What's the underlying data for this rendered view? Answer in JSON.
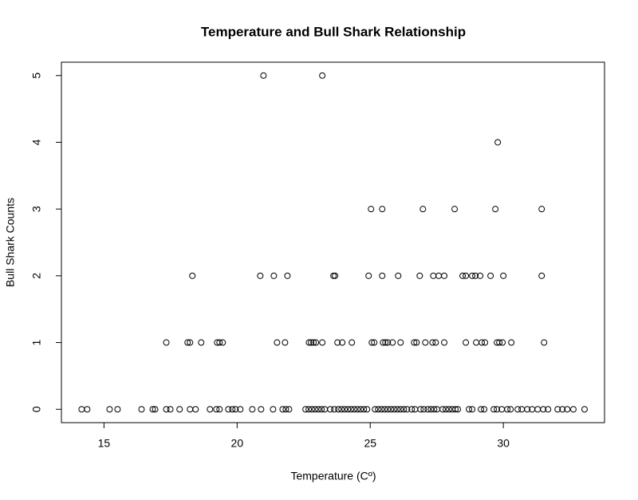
{
  "chart_data": {
    "type": "scatter",
    "title": "Temperature and Bull Shark Relationship",
    "x_label": "Temperature (Cº)",
    "y_label": "Bull Shark Counts",
    "color": "#000000",
    "xlim": [
      13.4,
      33.8
    ],
    "xticks": [
      15,
      20,
      25,
      30
    ],
    "ylim": [
      -0.2,
      5.2
    ],
    "yticks": [
      0,
      1,
      2,
      3,
      4,
      5
    ],
    "x": [
      20.99,
      23.2,
      29.79,
      25.03,
      25.45,
      26.98,
      28.17,
      29.7,
      31.44,
      18.32,
      20.87,
      21.38,
      21.89,
      23.62,
      23.68,
      24.94,
      25.45,
      26.05,
      26.86,
      27.37,
      27.57,
      27.78,
      28.47,
      28.59,
      28.83,
      28.95,
      29.13,
      29.52,
      30.0,
      31.44,
      17.34,
      18.14,
      18.23,
      18.65,
      19.25,
      19.34,
      19.46,
      21.5,
      21.8,
      22.7,
      22.78,
      22.87,
      22.96,
      23.2,
      23.77,
      23.95,
      24.31,
      25.06,
      25.15,
      25.48,
      25.57,
      25.66,
      25.84,
      26.14,
      26.65,
      26.74,
      27.07,
      27.34,
      27.46,
      27.78,
      28.59,
      28.98,
      29.19,
      29.31,
      29.76,
      29.85,
      29.97,
      30.3,
      31.53,
      14.16,
      14.37,
      15.21,
      15.51,
      16.41,
      16.83,
      16.92,
      17.34,
      17.49,
      17.84,
      18.23,
      18.44,
      18.98,
      19.22,
      19.34,
      19.67,
      19.82,
      19.94,
      20.12,
      20.57,
      20.9,
      21.35,
      21.71,
      21.83,
      21.95,
      22.57,
      22.69,
      22.81,
      22.93,
      23.05,
      23.17,
      23.29,
      23.5,
      23.65,
      23.8,
      23.92,
      24.04,
      24.16,
      24.28,
      24.4,
      24.52,
      24.64,
      24.76,
      24.88,
      25.18,
      25.3,
      25.42,
      25.54,
      25.66,
      25.78,
      25.9,
      26.02,
      26.14,
      26.26,
      26.38,
      26.56,
      26.68,
      26.89,
      27.01,
      27.16,
      27.28,
      27.4,
      27.51,
      27.72,
      27.84,
      27.96,
      28.08,
      28.2,
      28.29,
      28.71,
      28.83,
      29.16,
      29.28,
      29.64,
      29.76,
      29.94,
      30.15,
      30.27,
      30.54,
      30.69,
      30.9,
      31.08,
      31.29,
      31.5,
      31.68,
      32.04,
      32.22,
      32.4,
      32.63,
      33.05
    ],
    "values": [
      5,
      5,
      4,
      3,
      3,
      3,
      3,
      3,
      3,
      2,
      2,
      2,
      2,
      2,
      2,
      2,
      2,
      2,
      2,
      2,
      2,
      2,
      2,
      2,
      2,
      2,
      2,
      2,
      2,
      2,
      1,
      1,
      1,
      1,
      1,
      1,
      1,
      1,
      1,
      1,
      1,
      1,
      1,
      1,
      1,
      1,
      1,
      1,
      1,
      1,
      1,
      1,
      1,
      1,
      1,
      1,
      1,
      1,
      1,
      1,
      1,
      1,
      1,
      1,
      1,
      1,
      1,
      1,
      1,
      0,
      0,
      0,
      0,
      0,
      0,
      0,
      0,
      0,
      0,
      0,
      0,
      0,
      0,
      0,
      0,
      0,
      0,
      0,
      0,
      0,
      0,
      0,
      0,
      0,
      0,
      0,
      0,
      0,
      0,
      0,
      0,
      0,
      0,
      0,
      0,
      0,
      0,
      0,
      0,
      0,
      0,
      0,
      0,
      0,
      0,
      0,
      0,
      0,
      0,
      0,
      0,
      0,
      0,
      0,
      0,
      0,
      0,
      0,
      0,
      0,
      0,
      0,
      0,
      0,
      0,
      0,
      0,
      0,
      0,
      0,
      0,
      0,
      0,
      0,
      0,
      0,
      0,
      0,
      0,
      0,
      0,
      0,
      0,
      0,
      0,
      0,
      0,
      0,
      0
    ]
  }
}
